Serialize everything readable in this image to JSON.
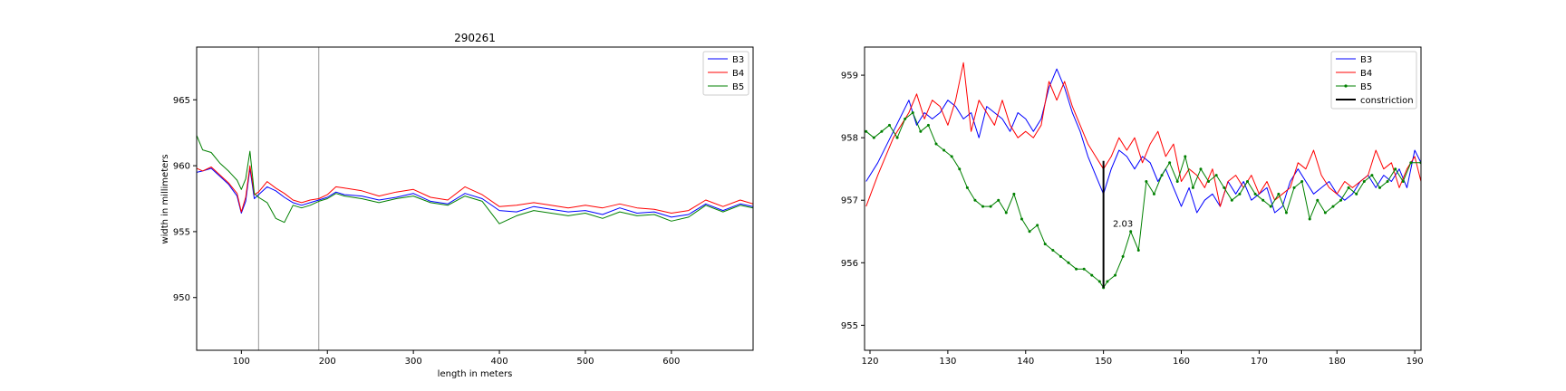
{
  "chart_data": [
    {
      "type": "line",
      "title": "290261",
      "xlabel": "length in meters",
      "ylabel": "width in millimeters",
      "xlim": [
        48,
        695
      ],
      "ylim": [
        946,
        969
      ],
      "xticks": [
        100,
        200,
        300,
        400,
        500,
        600
      ],
      "yticks": [
        950,
        955,
        960,
        965
      ],
      "grid": false,
      "legend": "top-right",
      "vlines": [
        120,
        190
      ],
      "series": [
        {
          "name": "B3",
          "color": "#0000ff",
          "x": [
            48,
            55,
            65,
            75,
            85,
            95,
            100,
            105,
            110,
            115,
            120,
            130,
            140,
            150,
            160,
            170,
            180,
            190,
            200,
            210,
            220,
            240,
            260,
            280,
            300,
            320,
            340,
            360,
            380,
            400,
            420,
            440,
            460,
            480,
            500,
            520,
            540,
            560,
            580,
            600,
            620,
            640,
            660,
            680,
            695
          ],
          "y": [
            959.5,
            959.6,
            959.8,
            959.2,
            958.6,
            957.7,
            956.4,
            957.3,
            959.8,
            957.5,
            957.8,
            958.4,
            958.1,
            957.6,
            957.2,
            957.0,
            957.2,
            957.4,
            957.6,
            958.0,
            957.8,
            957.7,
            957.4,
            957.6,
            957.9,
            957.3,
            957.1,
            957.9,
            957.5,
            956.6,
            956.5,
            956.9,
            956.7,
            956.5,
            956.6,
            956.3,
            956.8,
            956.4,
            956.5,
            956.1,
            956.3,
            957.1,
            956.6,
            957.1,
            956.9
          ]
        },
        {
          "name": "B4",
          "color": "#ff0000",
          "x": [
            48,
            55,
            65,
            75,
            85,
            95,
            100,
            105,
            110,
            115,
            120,
            130,
            140,
            150,
            160,
            170,
            180,
            190,
            200,
            210,
            220,
            240,
            260,
            280,
            300,
            320,
            340,
            360,
            380,
            400,
            420,
            440,
            460,
            480,
            500,
            520,
            540,
            560,
            580,
            600,
            620,
            640,
            660,
            680,
            695
          ],
          "y": [
            959.8,
            959.6,
            959.9,
            959.3,
            958.7,
            957.9,
            956.5,
            957.6,
            960.0,
            957.8,
            958.0,
            958.8,
            958.3,
            957.9,
            957.4,
            957.2,
            957.4,
            957.5,
            957.8,
            958.4,
            958.3,
            958.1,
            957.7,
            958.0,
            958.2,
            957.6,
            957.4,
            958.4,
            957.8,
            956.9,
            957.0,
            957.2,
            957.0,
            956.8,
            957.0,
            956.8,
            957.1,
            956.8,
            956.7,
            956.4,
            956.6,
            957.4,
            956.9,
            957.4,
            957.1
          ]
        },
        {
          "name": "B5",
          "color": "#008000",
          "x": [
            48,
            55,
            65,
            75,
            85,
            95,
            100,
            105,
            110,
            115,
            120,
            130,
            140,
            150,
            160,
            170,
            180,
            190,
            200,
            210,
            220,
            240,
            260,
            280,
            300,
            320,
            340,
            360,
            380,
            400,
            420,
            440,
            460,
            480,
            500,
            520,
            540,
            560,
            580,
            600,
            620,
            640,
            660,
            680,
            695
          ],
          "y": [
            962.3,
            961.2,
            961.0,
            960.2,
            959.6,
            958.9,
            958.2,
            959.0,
            961.1,
            957.9,
            957.6,
            957.2,
            956.0,
            955.7,
            957.0,
            956.8,
            957.0,
            957.3,
            957.5,
            957.9,
            957.7,
            957.5,
            957.2,
            957.5,
            957.7,
            957.2,
            957.0,
            957.7,
            957.3,
            955.6,
            956.2,
            956.6,
            956.4,
            956.2,
            956.4,
            956.0,
            956.5,
            956.2,
            956.3,
            955.8,
            956.1,
            957.0,
            956.5,
            957.0,
            956.8
          ]
        }
      ]
    },
    {
      "type": "line",
      "title": "",
      "xlabel": "",
      "ylabel": "",
      "xlim": [
        119.3,
        190.8
      ],
      "ylim": [
        954.6,
        959.45
      ],
      "xticks": [
        120,
        130,
        140,
        150,
        160,
        170,
        180,
        190
      ],
      "yticks": [
        955,
        956,
        957,
        958,
        959
      ],
      "grid": false,
      "legend": "top-right",
      "annotation": {
        "text": "2.03",
        "x": 151.2,
        "y": 956.63
      },
      "constriction": {
        "name": "constriction",
        "color": "#000000",
        "x": 150,
        "y": [
          955.6,
          957.63
        ]
      },
      "series": [
        {
          "name": "B3",
          "color": "#0000ff",
          "markers": false,
          "x": [
            119.5,
            121,
            123,
            125,
            126,
            127,
            128,
            129,
            130,
            131,
            132,
            133,
            134,
            135,
            136,
            137,
            138,
            139,
            140,
            141,
            142,
            143,
            144,
            145,
            146,
            147,
            148,
            149,
            150,
            151,
            152,
            153,
            154,
            155,
            156,
            157,
            158,
            159,
            160,
            161,
            162,
            163,
            164,
            165,
            166,
            167,
            168,
            169,
            170,
            171,
            172,
            173,
            174,
            175,
            176,
            177,
            178,
            179,
            180,
            181,
            182,
            183,
            184,
            185,
            186,
            187,
            188,
            189,
            190,
            190.8
          ],
          "y": [
            957.3,
            957.6,
            958.1,
            958.6,
            958.2,
            958.4,
            958.3,
            958.4,
            958.6,
            958.5,
            958.3,
            958.4,
            958.0,
            958.5,
            958.4,
            958.3,
            958.1,
            958.4,
            958.3,
            958.1,
            958.3,
            958.8,
            959.1,
            958.8,
            958.4,
            958.1,
            957.7,
            957.4,
            957.1,
            957.5,
            957.8,
            957.7,
            957.5,
            957.7,
            957.6,
            957.3,
            957.5,
            957.2,
            956.9,
            957.2,
            956.8,
            957.0,
            957.1,
            956.9,
            957.3,
            957.1,
            957.3,
            957.0,
            957.1,
            957.2,
            956.8,
            956.9,
            957.3,
            957.5,
            957.3,
            957.1,
            957.2,
            957.3,
            957.1,
            957.0,
            957.1,
            957.3,
            957.4,
            957.2,
            957.4,
            957.3,
            957.5,
            957.2,
            957.8,
            957.6
          ]
        },
        {
          "name": "B4",
          "color": "#ff0000",
          "markers": false,
          "x": [
            119.5,
            121,
            123,
            125,
            126,
            127,
            128,
            129,
            130,
            131,
            132,
            133,
            134,
            135,
            136,
            137,
            138,
            139,
            140,
            141,
            142,
            143,
            144,
            145,
            146,
            147,
            148,
            149,
            150,
            151,
            152,
            153,
            154,
            155,
            156,
            157,
            158,
            159,
            160,
            161,
            162,
            163,
            164,
            165,
            166,
            167,
            168,
            169,
            170,
            171,
            172,
            173,
            174,
            175,
            176,
            177,
            178,
            179,
            180,
            181,
            182,
            183,
            184,
            185,
            186,
            187,
            188,
            189,
            190,
            190.8
          ],
          "y": [
            956.9,
            957.4,
            958.0,
            958.4,
            958.7,
            958.3,
            958.6,
            958.5,
            958.2,
            958.6,
            959.2,
            958.1,
            958.6,
            958.4,
            958.2,
            958.6,
            958.2,
            958.0,
            958.1,
            958.0,
            958.2,
            958.9,
            958.6,
            958.9,
            958.5,
            958.2,
            957.9,
            957.7,
            957.5,
            957.7,
            958.0,
            957.8,
            958.0,
            957.6,
            957.9,
            958.1,
            957.7,
            957.9,
            957.3,
            957.5,
            957.4,
            957.2,
            957.5,
            956.9,
            957.3,
            957.4,
            957.2,
            957.4,
            957.1,
            957.3,
            957.0,
            957.1,
            957.2,
            957.6,
            957.5,
            957.8,
            957.4,
            957.2,
            957.1,
            957.3,
            957.2,
            957.3,
            957.4,
            957.8,
            957.5,
            957.6,
            957.2,
            957.5,
            957.7,
            957.3
          ]
        },
        {
          "name": "B5",
          "color": "#008000",
          "markers": true,
          "x": [
            119.5,
            120.5,
            121.5,
            122.5,
            123.5,
            124.5,
            125.5,
            126.5,
            127.5,
            128.5,
            129.5,
            130.5,
            131.5,
            132.5,
            133.5,
            134.5,
            135.5,
            136.5,
            137.5,
            138.5,
            139.5,
            140.5,
            141.5,
            142.5,
            143.5,
            144.5,
            145.5,
            146.5,
            147.5,
            148.5,
            149.5,
            150,
            150.5,
            151.5,
            152.5,
            153.5,
            154.5,
            155.5,
            156.5,
            157.5,
            158.5,
            159.5,
            160.5,
            161.5,
            162.5,
            163.5,
            164.5,
            165.5,
            166.5,
            167.5,
            168.5,
            169.5,
            170.5,
            171.5,
            172.5,
            173.5,
            174.5,
            175.5,
            176.5,
            177.5,
            178.5,
            179.5,
            180.5,
            181.5,
            182.5,
            183.5,
            184.5,
            185.5,
            186.5,
            187.5,
            188.5,
            189.5,
            190.8
          ],
          "y": [
            958.1,
            958.0,
            958.1,
            958.2,
            958.0,
            958.3,
            958.4,
            958.1,
            958.2,
            957.9,
            957.8,
            957.7,
            957.5,
            957.2,
            957.0,
            956.9,
            956.9,
            957.0,
            956.8,
            957.1,
            956.7,
            956.5,
            956.6,
            956.3,
            956.2,
            956.1,
            956.0,
            955.9,
            955.9,
            955.8,
            955.7,
            955.6,
            955.7,
            955.8,
            956.1,
            956.5,
            956.2,
            957.3,
            957.1,
            957.4,
            957.6,
            957.3,
            957.7,
            957.2,
            957.5,
            957.3,
            957.4,
            957.2,
            957.0,
            957.1,
            957.3,
            957.1,
            957.0,
            956.9,
            957.1,
            956.8,
            957.2,
            957.3,
            956.7,
            957.0,
            956.8,
            956.9,
            957.0,
            957.2,
            957.1,
            957.3,
            957.4,
            957.2,
            957.3,
            957.5,
            957.3,
            957.6,
            957.6
          ]
        }
      ]
    }
  ]
}
